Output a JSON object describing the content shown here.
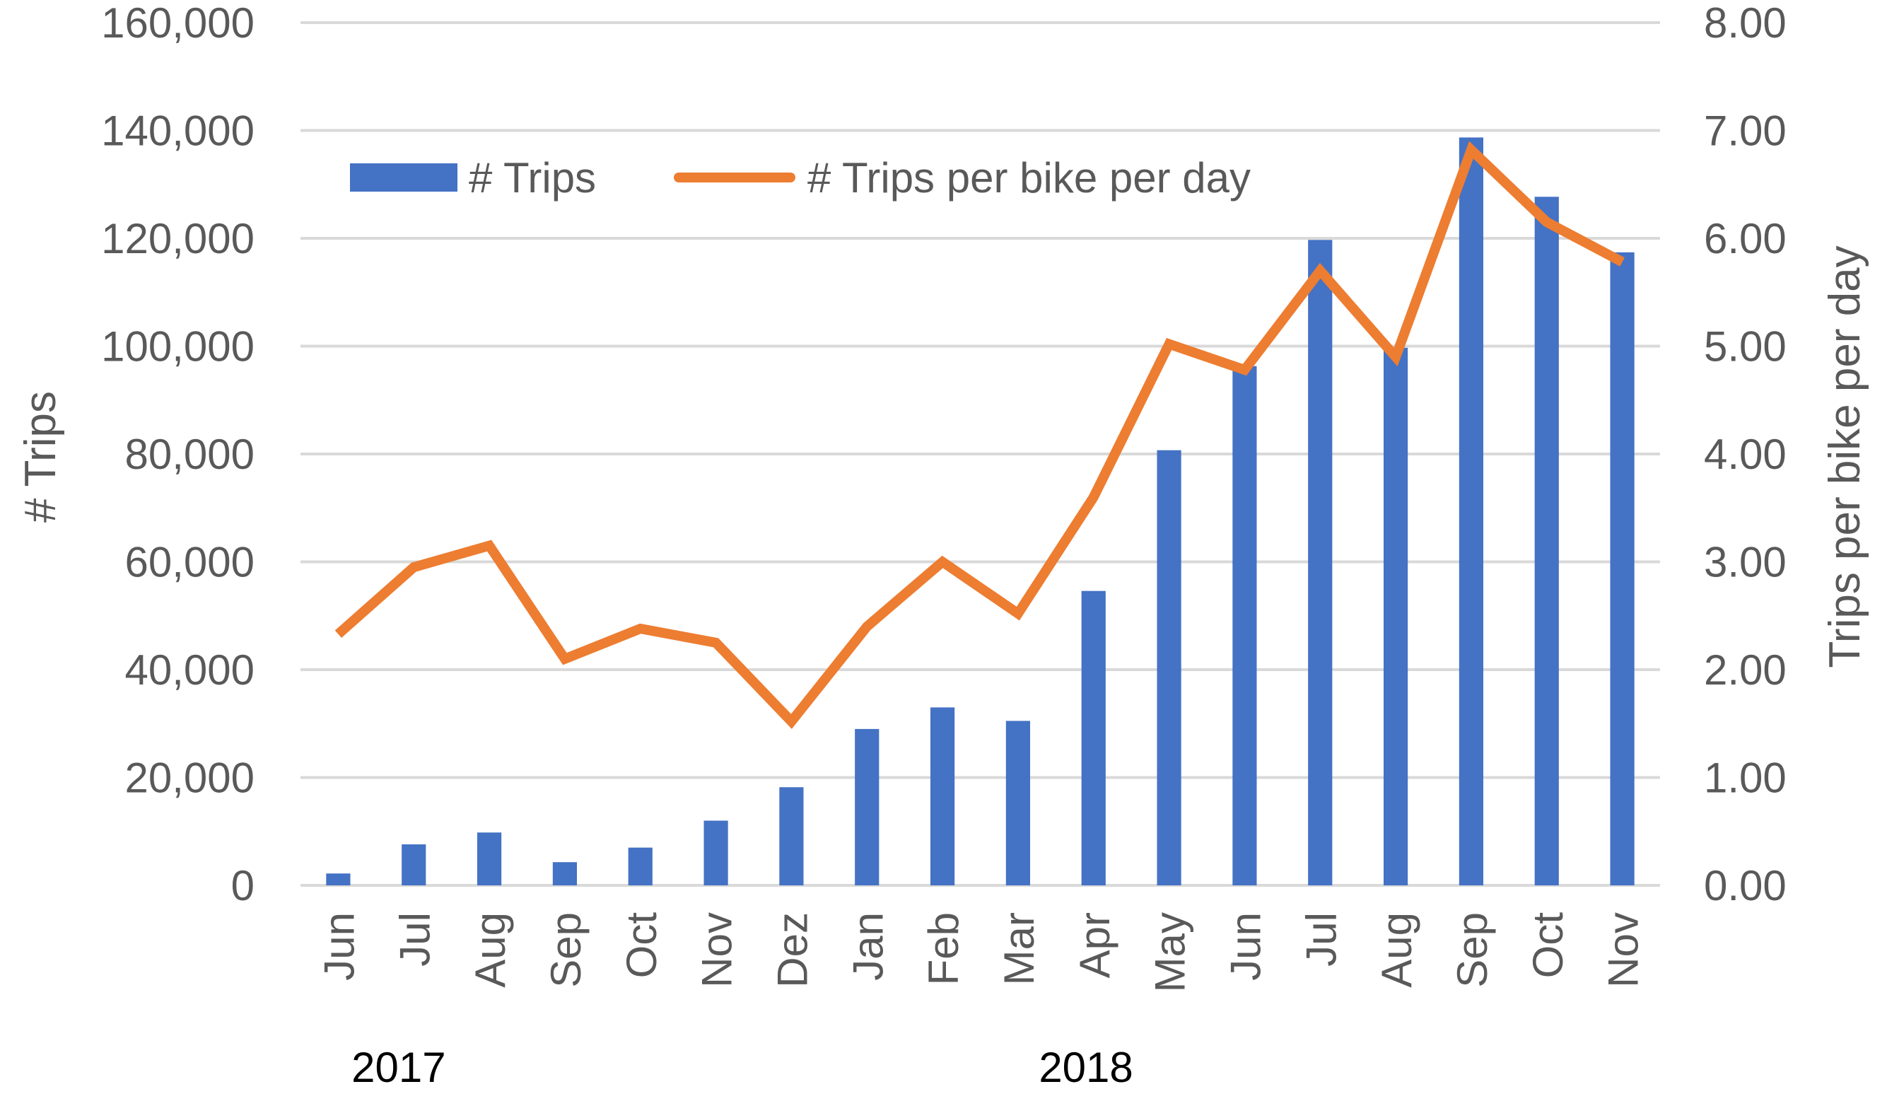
{
  "chart_data": {
    "type": "bar",
    "categories": [
      "Jun",
      "Jul",
      "Aug",
      "Sep",
      "Oct",
      "Nov",
      "Dez",
      "Jan",
      "Feb",
      "Mar",
      "Apr",
      "May",
      "Jun",
      "Jul",
      "Aug",
      "Sep",
      "Oct",
      "Nov"
    ],
    "series": [
      {
        "name": "# Trips",
        "type": "bar",
        "axis": "left",
        "color": "#4472C4",
        "values": [
          2200,
          7600,
          9800,
          4300,
          7000,
          12000,
          18200,
          29000,
          33000,
          30500,
          54600,
          80700,
          96300,
          119700,
          99700,
          138700,
          127700,
          117400
        ]
      },
      {
        "name": "# Trips per bike per day",
        "type": "line",
        "axis": "right",
        "color": "#ED7D31",
        "values": [
          2.33,
          2.95,
          3.15,
          2.1,
          2.38,
          2.25,
          1.52,
          2.4,
          3.0,
          2.52,
          3.6,
          5.02,
          4.78,
          5.7,
          4.9,
          6.82,
          6.15,
          5.78
        ]
      }
    ],
    "y_left": {
      "label": "# Trips",
      "ylim": [
        0,
        160000
      ],
      "ticks": [
        0,
        20000,
        40000,
        60000,
        80000,
        100000,
        120000,
        140000,
        160000
      ],
      "tick_labels": [
        "0",
        "20,000",
        "40,000",
        "60,000",
        "80,000",
        "100,000",
        "120,000",
        "140,000",
        "160,000"
      ]
    },
    "y_right": {
      "label": "Trips per bike per day",
      "ylim": [
        0,
        8
      ],
      "tick_labels": [
        "0.00",
        "1.00",
        "2.00",
        "3.00",
        "4.00",
        "5.00",
        "6.00",
        "7.00",
        "8.00"
      ]
    },
    "year_labels": [
      {
        "text": "2017",
        "category_index": 0.8
      },
      {
        "text": "2018",
        "category_index": 9.9
      }
    ],
    "grid": true,
    "legend_position": "top-left"
  }
}
